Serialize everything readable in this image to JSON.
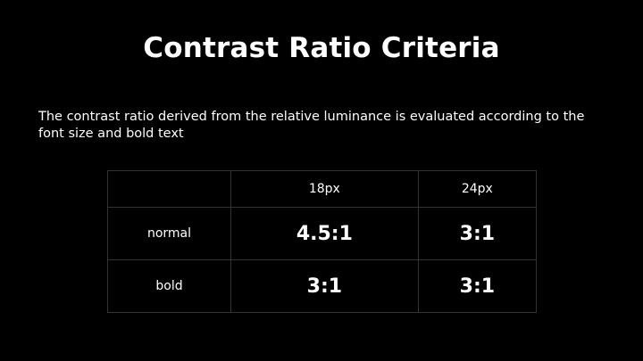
{
  "header": {
    "title": "Contrast Ratio Criteria"
  },
  "description": "The contrast ratio derived from the relative luminance is evaluated according to the font size and bold text",
  "table": {
    "columns": [
      "18px",
      "24px"
    ],
    "rows": [
      [
        "normal",
        "4.5:1",
        "3:1"
      ],
      [
        "bold",
        "3:1",
        "3:1"
      ]
    ]
  }
}
